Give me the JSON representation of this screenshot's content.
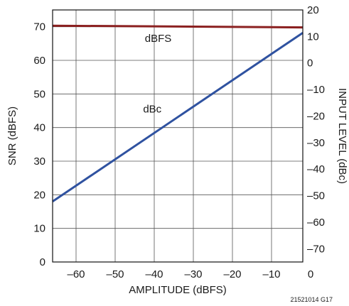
{
  "chart_data": {
    "type": "line",
    "xlabel": "AMPLITUDE (dBFS)",
    "ylabel": "SNR (dBFS)",
    "y2label": "INPUT LEVEL (dBc)",
    "xlim": [
      -66,
      -2
    ],
    "ylim": [
      0,
      75
    ],
    "y2lim": [
      -75,
      20
    ],
    "x_ticks": [
      -60,
      -50,
      -40,
      -30,
      -20,
      -10,
      0
    ],
    "x_tick_labels": [
      "–60",
      "–50",
      "–40",
      "–30",
      "–20",
      "–10",
      "0"
    ],
    "y_ticks": [
      0,
      10,
      20,
      30,
      40,
      50,
      60,
      70
    ],
    "y_tick_labels": [
      "0",
      "10",
      "20",
      "30",
      "40",
      "50",
      "60",
      "70"
    ],
    "y2_ticks": [
      20,
      10,
      0,
      -10,
      -20,
      -30,
      -40,
      -50,
      -60,
      -70
    ],
    "y2_tick_labels": [
      "20",
      "10",
      "0",
      "–10",
      "–20",
      "–30",
      "–40",
      "–50",
      "–60",
      "–70"
    ],
    "grid": true,
    "series": [
      {
        "name": "dBFS",
        "color": "#8b2020",
        "x": [
          -66,
          -2
        ],
        "y": [
          70.3,
          69.8
        ]
      },
      {
        "name": "dBc",
        "color": "#2f52a0",
        "x": [
          -66,
          -2
        ],
        "y": [
          18,
          68.2
        ]
      }
    ],
    "annotations": [
      {
        "text": "dBFS",
        "x": -39,
        "y": 65.5
      },
      {
        "text": "dBc",
        "x": -40.5,
        "y": 44.5
      }
    ],
    "figure_code": "21521014 G17"
  }
}
